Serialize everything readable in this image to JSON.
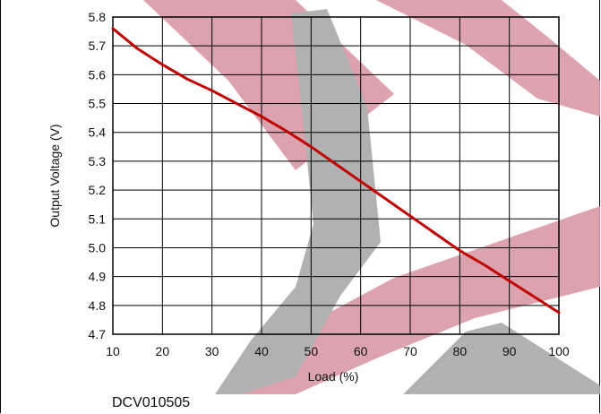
{
  "chart_data": {
    "type": "line",
    "title": "",
    "xlabel": "Load (%)",
    "ylabel": "Output Voltage (V)",
    "xlim": [
      10,
      100
    ],
    "ylim": [
      4.7,
      5.8
    ],
    "xticks": [
      10,
      20,
      30,
      40,
      50,
      60,
      70,
      80,
      90,
      100
    ],
    "yticks": [
      4.7,
      4.8,
      4.9,
      5.0,
      5.1,
      5.2,
      5.3,
      5.4,
      5.5,
      5.6,
      5.7,
      5.8
    ],
    "grid": true,
    "series": [
      {
        "color": "#c00000",
        "x": [
          10,
          15,
          20,
          25,
          30,
          35,
          40,
          45,
          50,
          55,
          60,
          65,
          70,
          75,
          80,
          85,
          90,
          95,
          100
        ],
        "y": [
          5.76,
          5.69,
          5.635,
          5.585,
          5.545,
          5.5,
          5.455,
          5.405,
          5.35,
          5.29,
          5.23,
          5.17,
          5.11,
          5.05,
          4.99,
          4.94,
          4.885,
          4.83,
          4.775
        ]
      }
    ]
  },
  "part_number": "DCV010505"
}
